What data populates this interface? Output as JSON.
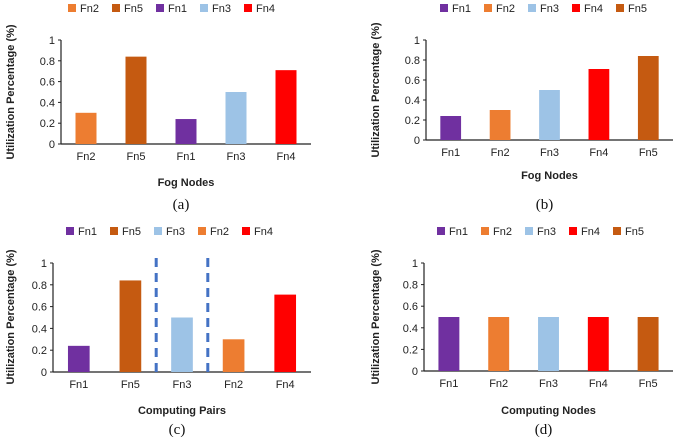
{
  "colors": {
    "Fn1": "#7030A0",
    "Fn2": "#ED7D31",
    "Fn3": "#9DC3E6",
    "Fn4": "#FF0000",
    "Fn5": "#C55A11",
    "separator": "#4472C4",
    "axis": "#222222",
    "grid": "#D9D9D9"
  },
  "chart_data": [
    {
      "type": "bar",
      "panel_label": "(a)",
      "categories": [
        "Fn2",
        "Fn5",
        "Fn1",
        "Fn3",
        "Fn4"
      ],
      "values": [
        0.3,
        0.84,
        0.24,
        0.5,
        0.71
      ],
      "legend": [
        "Fn2",
        "Fn5",
        "Fn1",
        "Fn3",
        "Fn4"
      ],
      "xlabel": "Fog Nodes",
      "ylabel": "Utilization Percentage (%)",
      "ylim": [
        0,
        1
      ],
      "yticks": [
        "0",
        "0.2",
        "0.4",
        "0.6",
        "0.8",
        "1"
      ],
      "separators_after": []
    },
    {
      "type": "bar",
      "panel_label": "(b)",
      "categories": [
        "Fn1",
        "Fn2",
        "Fn3",
        "Fn4",
        "Fn5"
      ],
      "values": [
        0.24,
        0.3,
        0.5,
        0.71,
        0.84
      ],
      "legend": [
        "Fn1",
        "Fn2",
        "Fn3",
        "Fn4",
        "Fn5"
      ],
      "xlabel": "Fog Nodes",
      "ylabel": "Utilization Percentage (%)",
      "ylim": [
        0,
        1
      ],
      "yticks": [
        "0",
        "0.2",
        "0.4",
        "0.6",
        "0.8",
        "1"
      ],
      "separators_after": []
    },
    {
      "type": "bar",
      "panel_label": "(c)",
      "categories": [
        "Fn1",
        "Fn5",
        "Fn3",
        "Fn2",
        "Fn4"
      ],
      "values": [
        0.24,
        0.84,
        0.5,
        0.3,
        0.71
      ],
      "legend": [
        "Fn1",
        "Fn5",
        "Fn3",
        "Fn2",
        "Fn4"
      ],
      "xlabel": "Computing Pairs",
      "ylabel": "Utilization Percentage (%)",
      "ylim": [
        0,
        1
      ],
      "yticks": [
        "0",
        "0.2",
        "0.4",
        "0.6",
        "0.8",
        "1"
      ],
      "separators_after": [
        1,
        2
      ]
    },
    {
      "type": "bar",
      "panel_label": "(d)",
      "categories": [
        "Fn1",
        "Fn2",
        "Fn3",
        "Fn4",
        "Fn5"
      ],
      "values": [
        0.5,
        0.5,
        0.5,
        0.5,
        0.5
      ],
      "legend": [
        "Fn1",
        "Fn2",
        "Fn3",
        "Fn4",
        "Fn5"
      ],
      "xlabel": "Computing Nodes",
      "ylabel": "Utilization Percentage (%)",
      "ylim": [
        0,
        1
      ],
      "yticks": [
        "0",
        "0.2",
        "0.4",
        "0.6",
        "0.8",
        "1"
      ],
      "separators_after": []
    }
  ]
}
